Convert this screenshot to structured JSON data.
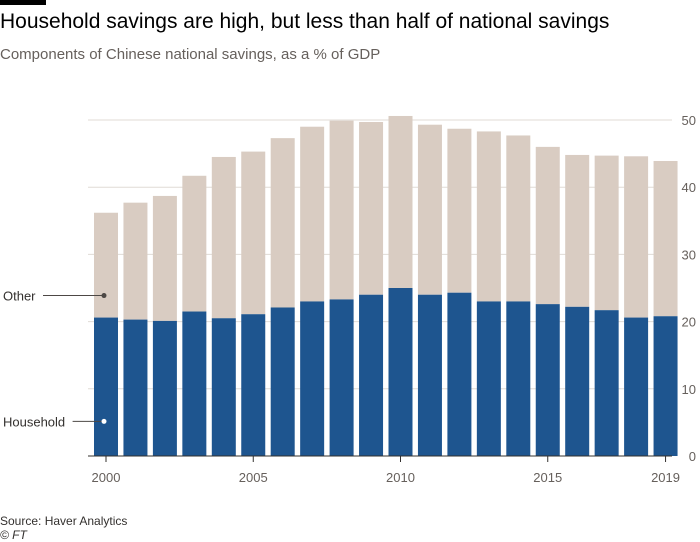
{
  "title": "Household savings are high, but less than half of national savings",
  "subtitle": "Components of Chinese national savings, as a % of GDP",
  "source": "Source: Haver Analytics",
  "credit": "© FT",
  "colors": {
    "household": "#1e558f",
    "other": "#d9ccc2",
    "grid": "#e0dbd6",
    "axis": "#66605c",
    "annotation": "#4d4845"
  },
  "chart_data": {
    "type": "bar",
    "stacked": true,
    "title": "Household savings are high, but less than half of national savings",
    "subtitle": "Components of Chinese national savings, as a % of GDP",
    "x": [
      2000,
      2001,
      2002,
      2003,
      2004,
      2005,
      2006,
      2007,
      2008,
      2009,
      2010,
      2011,
      2012,
      2013,
      2014,
      2015,
      2016,
      2017,
      2018,
      2019
    ],
    "x_tick_labels": [
      "2000",
      "2005",
      "2010",
      "2015",
      "2019"
    ],
    "y_ticks": [
      0,
      10,
      20,
      30,
      40,
      50
    ],
    "ylim": [
      0,
      50
    ],
    "y_axis_position": "right",
    "grid": true,
    "series": [
      {
        "name": "Household",
        "values": [
          20.6,
          20.3,
          20.1,
          21.5,
          20.5,
          21.1,
          22.1,
          23.0,
          23.3,
          24.0,
          25.0,
          24.0,
          24.3,
          23.0,
          23.0,
          22.6,
          22.2,
          21.7,
          20.6,
          20.8
        ]
      },
      {
        "name": "Other",
        "values": [
          15.6,
          17.4,
          18.6,
          20.2,
          24.0,
          24.2,
          25.2,
          26.0,
          26.6,
          25.7,
          25.6,
          25.3,
          24.4,
          25.3,
          24.7,
          23.4,
          22.6,
          23.0,
          24.0,
          23.1
        ]
      }
    ],
    "annotations": [
      {
        "label": "Other",
        "series": "Other"
      },
      {
        "label": "Household",
        "series": "Household"
      }
    ]
  }
}
